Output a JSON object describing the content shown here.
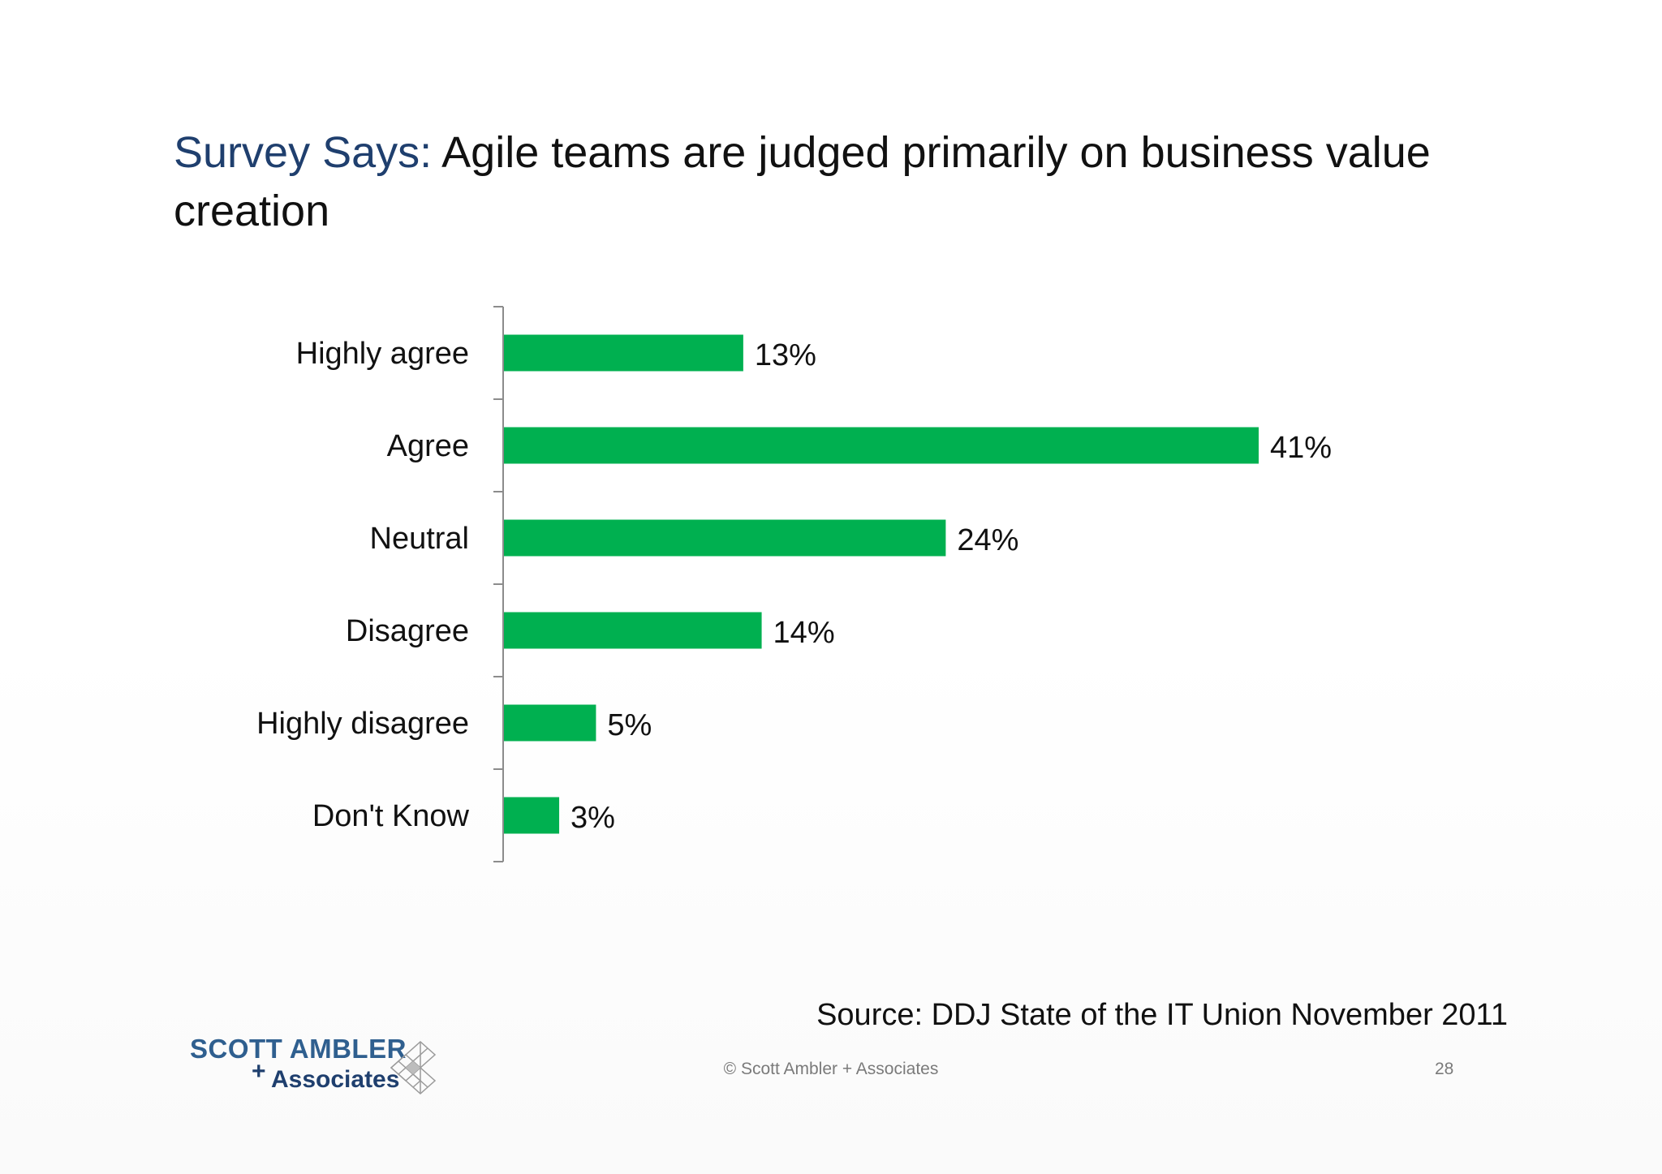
{
  "slide": {
    "title_accent": "Survey Says:",
    "title_text": "Agile teams are judged primarily on business value creation",
    "source": "Source: DDJ State of the IT Union November 2011",
    "copyright": "© Scott Ambler + Associates",
    "page_number": "28"
  },
  "logo": {
    "line1": "SCOTT AMBLER",
    "plus": "+",
    "line2": "Associates"
  },
  "colors": {
    "bar": "#00b050",
    "title_accent": "#1f3f6e",
    "axis": "#8c8c8c"
  },
  "chart_data": {
    "type": "bar",
    "orientation": "horizontal",
    "categories": [
      "Highly agree",
      "Agree",
      "Neutral",
      "Disagree",
      "Highly disagree",
      "Don't Know"
    ],
    "values": [
      13,
      41,
      24,
      14,
      5,
      3
    ],
    "data_labels": [
      "13%",
      "41%",
      "24%",
      "14%",
      "5%",
      "3%"
    ],
    "unit": "%",
    "xlim": [
      0,
      41
    ],
    "grid": false,
    "legend": "none"
  }
}
